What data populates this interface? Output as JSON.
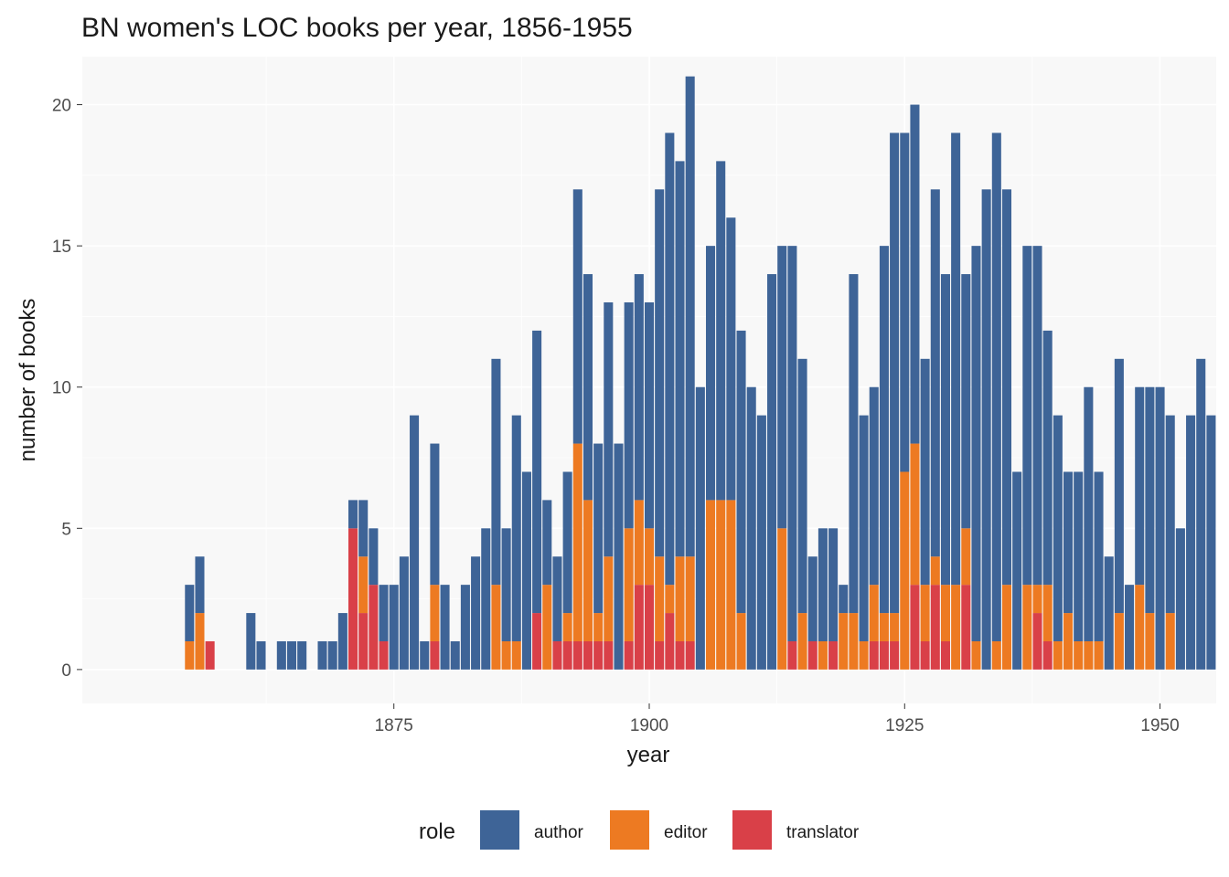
{
  "chart_data": {
    "type": "bar",
    "stacked": true,
    "title": "BN women's LOC books per year, 1856-1955",
    "xlabel": "year",
    "ylabel": "number of books",
    "xlim": [
      1844.5,
      1955.5
    ],
    "ylim": [
      -1.2,
      21.7
    ],
    "x_ticks": [
      1875,
      1900,
      1925,
      1950
    ],
    "y_ticks": [
      0,
      5,
      10,
      15,
      20
    ],
    "grid": true,
    "legend_position": "bottom",
    "legend_title": "role",
    "colors": {
      "author": "#3e6497",
      "editor": "#ed7a22",
      "translator": "#d94048",
      "panel": "#f8f8f8",
      "grid": "#ffffff"
    },
    "series": [
      {
        "name": "translator",
        "data": [
          [
            1857,
            1
          ],
          [
            1871,
            5
          ],
          [
            1872,
            2
          ],
          [
            1873,
            3
          ],
          [
            1874,
            1
          ],
          [
            1879,
            1
          ],
          [
            1889,
            2
          ],
          [
            1891,
            1
          ],
          [
            1892,
            1
          ],
          [
            1893,
            1
          ],
          [
            1894,
            1
          ],
          [
            1895,
            1
          ],
          [
            1896,
            1
          ],
          [
            1898,
            1
          ],
          [
            1899,
            3
          ],
          [
            1900,
            3
          ],
          [
            1901,
            1
          ],
          [
            1902,
            2
          ],
          [
            1903,
            1
          ],
          [
            1904,
            1
          ],
          [
            1914,
            1
          ],
          [
            1916,
            1
          ],
          [
            1918,
            1
          ],
          [
            1922,
            1
          ],
          [
            1923,
            1
          ],
          [
            1924,
            1
          ],
          [
            1926,
            3
          ],
          [
            1927,
            1
          ],
          [
            1928,
            3
          ],
          [
            1929,
            1
          ],
          [
            1931,
            3
          ],
          [
            1938,
            2
          ],
          [
            1939,
            1
          ]
        ]
      },
      {
        "name": "editor",
        "data": [
          [
            1855,
            1
          ],
          [
            1856,
            2
          ],
          [
            1872,
            2
          ],
          [
            1873,
            0
          ],
          [
            1879,
            2
          ],
          [
            1885,
            3
          ],
          [
            1886,
            1
          ],
          [
            1887,
            1
          ],
          [
            1890,
            3
          ],
          [
            1892,
            1
          ],
          [
            1893,
            7
          ],
          [
            1894,
            5
          ],
          [
            1895,
            1
          ],
          [
            1896,
            3
          ],
          [
            1898,
            4
          ],
          [
            1899,
            3
          ],
          [
            1900,
            2
          ],
          [
            1901,
            3
          ],
          [
            1902,
            1
          ],
          [
            1903,
            3
          ],
          [
            1904,
            3
          ],
          [
            1906,
            6
          ],
          [
            1907,
            6
          ],
          [
            1908,
            6
          ],
          [
            1909,
            2
          ],
          [
            1913,
            5
          ],
          [
            1914,
            0
          ],
          [
            1915,
            2
          ],
          [
            1917,
            1
          ],
          [
            1918,
            0
          ],
          [
            1919,
            2
          ],
          [
            1920,
            2
          ],
          [
            1921,
            1
          ],
          [
            1922,
            2
          ],
          [
            1923,
            1
          ],
          [
            1924,
            1
          ],
          [
            1925,
            7
          ],
          [
            1926,
            5
          ],
          [
            1927,
            2
          ],
          [
            1928,
            1
          ],
          [
            1929,
            2
          ],
          [
            1930,
            3
          ],
          [
            1931,
            2
          ],
          [
            1932,
            1
          ],
          [
            1934,
            1
          ],
          [
            1935,
            3
          ],
          [
            1937,
            3
          ],
          [
            1938,
            1
          ],
          [
            1939,
            2
          ],
          [
            1940,
            1
          ],
          [
            1941,
            2
          ],
          [
            1942,
            1
          ],
          [
            1943,
            1
          ],
          [
            1944,
            1
          ],
          [
            1946,
            2
          ],
          [
            1948,
            3
          ],
          [
            1949,
            2
          ],
          [
            1951,
            2
          ]
        ]
      },
      {
        "name": "author",
        "data": [
          [
            1855,
            2
          ],
          [
            1856,
            2
          ],
          [
            1861,
            2
          ],
          [
            1862,
            1
          ],
          [
            1864,
            1
          ],
          [
            1865,
            1
          ],
          [
            1866,
            1
          ],
          [
            1868,
            1
          ],
          [
            1869,
            1
          ],
          [
            1870,
            2
          ],
          [
            1871,
            1
          ],
          [
            1872,
            2
          ],
          [
            1873,
            2
          ],
          [
            1874,
            2
          ],
          [
            1875,
            3
          ],
          [
            1876,
            4
          ],
          [
            1877,
            9
          ],
          [
            1878,
            1
          ],
          [
            1879,
            5
          ],
          [
            1880,
            3
          ],
          [
            1881,
            1
          ],
          [
            1882,
            3
          ],
          [
            1883,
            4
          ],
          [
            1884,
            5
          ],
          [
            1885,
            8
          ],
          [
            1886,
            4
          ],
          [
            1887,
            8
          ],
          [
            1888,
            7
          ],
          [
            1889,
            10
          ],
          [
            1890,
            3
          ],
          [
            1891,
            3
          ],
          [
            1892,
            5
          ],
          [
            1893,
            9
          ],
          [
            1894,
            8
          ],
          [
            1895,
            6
          ],
          [
            1896,
            9
          ],
          [
            1897,
            8
          ],
          [
            1898,
            8
          ],
          [
            1899,
            8
          ],
          [
            1900,
            8
          ],
          [
            1901,
            13
          ],
          [
            1902,
            16
          ],
          [
            1903,
            14
          ],
          [
            1904,
            17
          ],
          [
            1905,
            10
          ],
          [
            1906,
            9
          ],
          [
            1907,
            12
          ],
          [
            1908,
            10
          ],
          [
            1909,
            10
          ],
          [
            1910,
            10
          ],
          [
            1911,
            9
          ],
          [
            1912,
            14
          ],
          [
            1913,
            10
          ],
          [
            1914,
            14
          ],
          [
            1915,
            9
          ],
          [
            1916,
            3
          ],
          [
            1917,
            4
          ],
          [
            1918,
            4
          ],
          [
            1919,
            1
          ],
          [
            1920,
            12
          ],
          [
            1921,
            8
          ],
          [
            1922,
            7
          ],
          [
            1923,
            13
          ],
          [
            1924,
            17
          ],
          [
            1925,
            12
          ],
          [
            1926,
            12
          ],
          [
            1927,
            8
          ],
          [
            1928,
            13
          ],
          [
            1929,
            11
          ],
          [
            1930,
            16
          ],
          [
            1931,
            9
          ],
          [
            1932,
            14
          ],
          [
            1933,
            17
          ],
          [
            1934,
            18
          ],
          [
            1935,
            14
          ],
          [
            1936,
            7
          ],
          [
            1937,
            12
          ],
          [
            1938,
            12
          ],
          [
            1939,
            9
          ],
          [
            1940,
            8
          ],
          [
            1941,
            5
          ],
          [
            1942,
            6
          ],
          [
            1943,
            9
          ],
          [
            1944,
            6
          ],
          [
            1945,
            4
          ],
          [
            1946,
            9
          ],
          [
            1947,
            3
          ],
          [
            1948,
            7
          ],
          [
            1949,
            8
          ],
          [
            1950,
            10
          ],
          [
            1951,
            7
          ],
          [
            1952,
            5
          ],
          [
            1953,
            9
          ],
          [
            1954,
            11
          ],
          [
            1955,
            9
          ]
        ]
      }
    ]
  }
}
